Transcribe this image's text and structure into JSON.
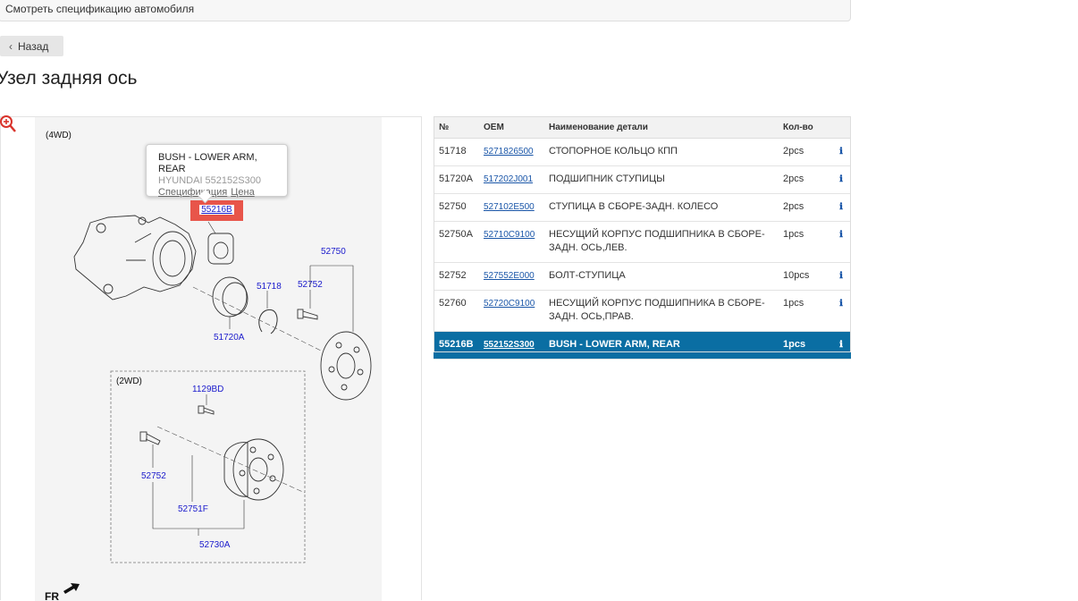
{
  "topbar": {
    "label": "Смотреть спецификацию автомобиля"
  },
  "back_button": {
    "label": "Назад"
  },
  "page_title": "Узел задняя ось",
  "diagram": {
    "labels": {
      "4wd": "(4WD)",
      "2wd": "(2WD)",
      "fr": "FR",
      "p51718": "51718",
      "p51720a": "51720A",
      "p52750": "52750",
      "p52752a": "52752",
      "p1129bd": "1129BD",
      "p52752b": "52752",
      "p52751f": "52751F",
      "p52730a": "52730A"
    },
    "callout": "55216B",
    "tooltip": {
      "name": "BUSH - LOWER ARM, REAR",
      "sub": "HYUNDAI 552152S300",
      "link_spec": "Спецификация",
      "link_price": "Цена"
    }
  },
  "table": {
    "headers": {
      "num": "№",
      "oem": "OEM",
      "name": "Наименование детали",
      "qty": "Кол-во"
    },
    "info_glyph": "ℹ",
    "rows": [
      {
        "num": "51718",
        "oem": "5271826500",
        "name": "СТОПОРНОЕ КОЛЬЦО КПП",
        "qty": "2pcs",
        "selected": false
      },
      {
        "num": "51720A",
        "oem": "517202J001",
        "name": "ПОДШИПНИК СТУПИЦЫ",
        "qty": "2pcs",
        "selected": false
      },
      {
        "num": "52750",
        "oem": "527102E500",
        "name": "СТУПИЦА В СБОРЕ-ЗАДН. КОЛЕСО",
        "qty": "2pcs",
        "selected": false
      },
      {
        "num": "52750A",
        "oem": "52710C9100",
        "name": "НЕСУЩИЙ КОРПУС ПОДШИПНИКА В СБОРЕ-ЗАДН. ОСЬ,ЛЕВ.",
        "qty": "1pcs",
        "selected": false
      },
      {
        "num": "52752",
        "oem": "527552E000",
        "name": "БОЛТ-СТУПИЦА",
        "qty": "10pcs",
        "selected": false
      },
      {
        "num": "52760",
        "oem": "52720C9100",
        "name": "НЕСУЩИЙ КОРПУС ПОДШИПНИКА В СБОРЕ-ЗАДН. ОСЬ,ПРАВ.",
        "qty": "1pcs",
        "selected": false
      },
      {
        "num": "55216B",
        "oem": "552152S300",
        "name": "BUSH - LOWER ARM, REAR",
        "qty": "1pcs",
        "selected": true
      }
    ]
  }
}
